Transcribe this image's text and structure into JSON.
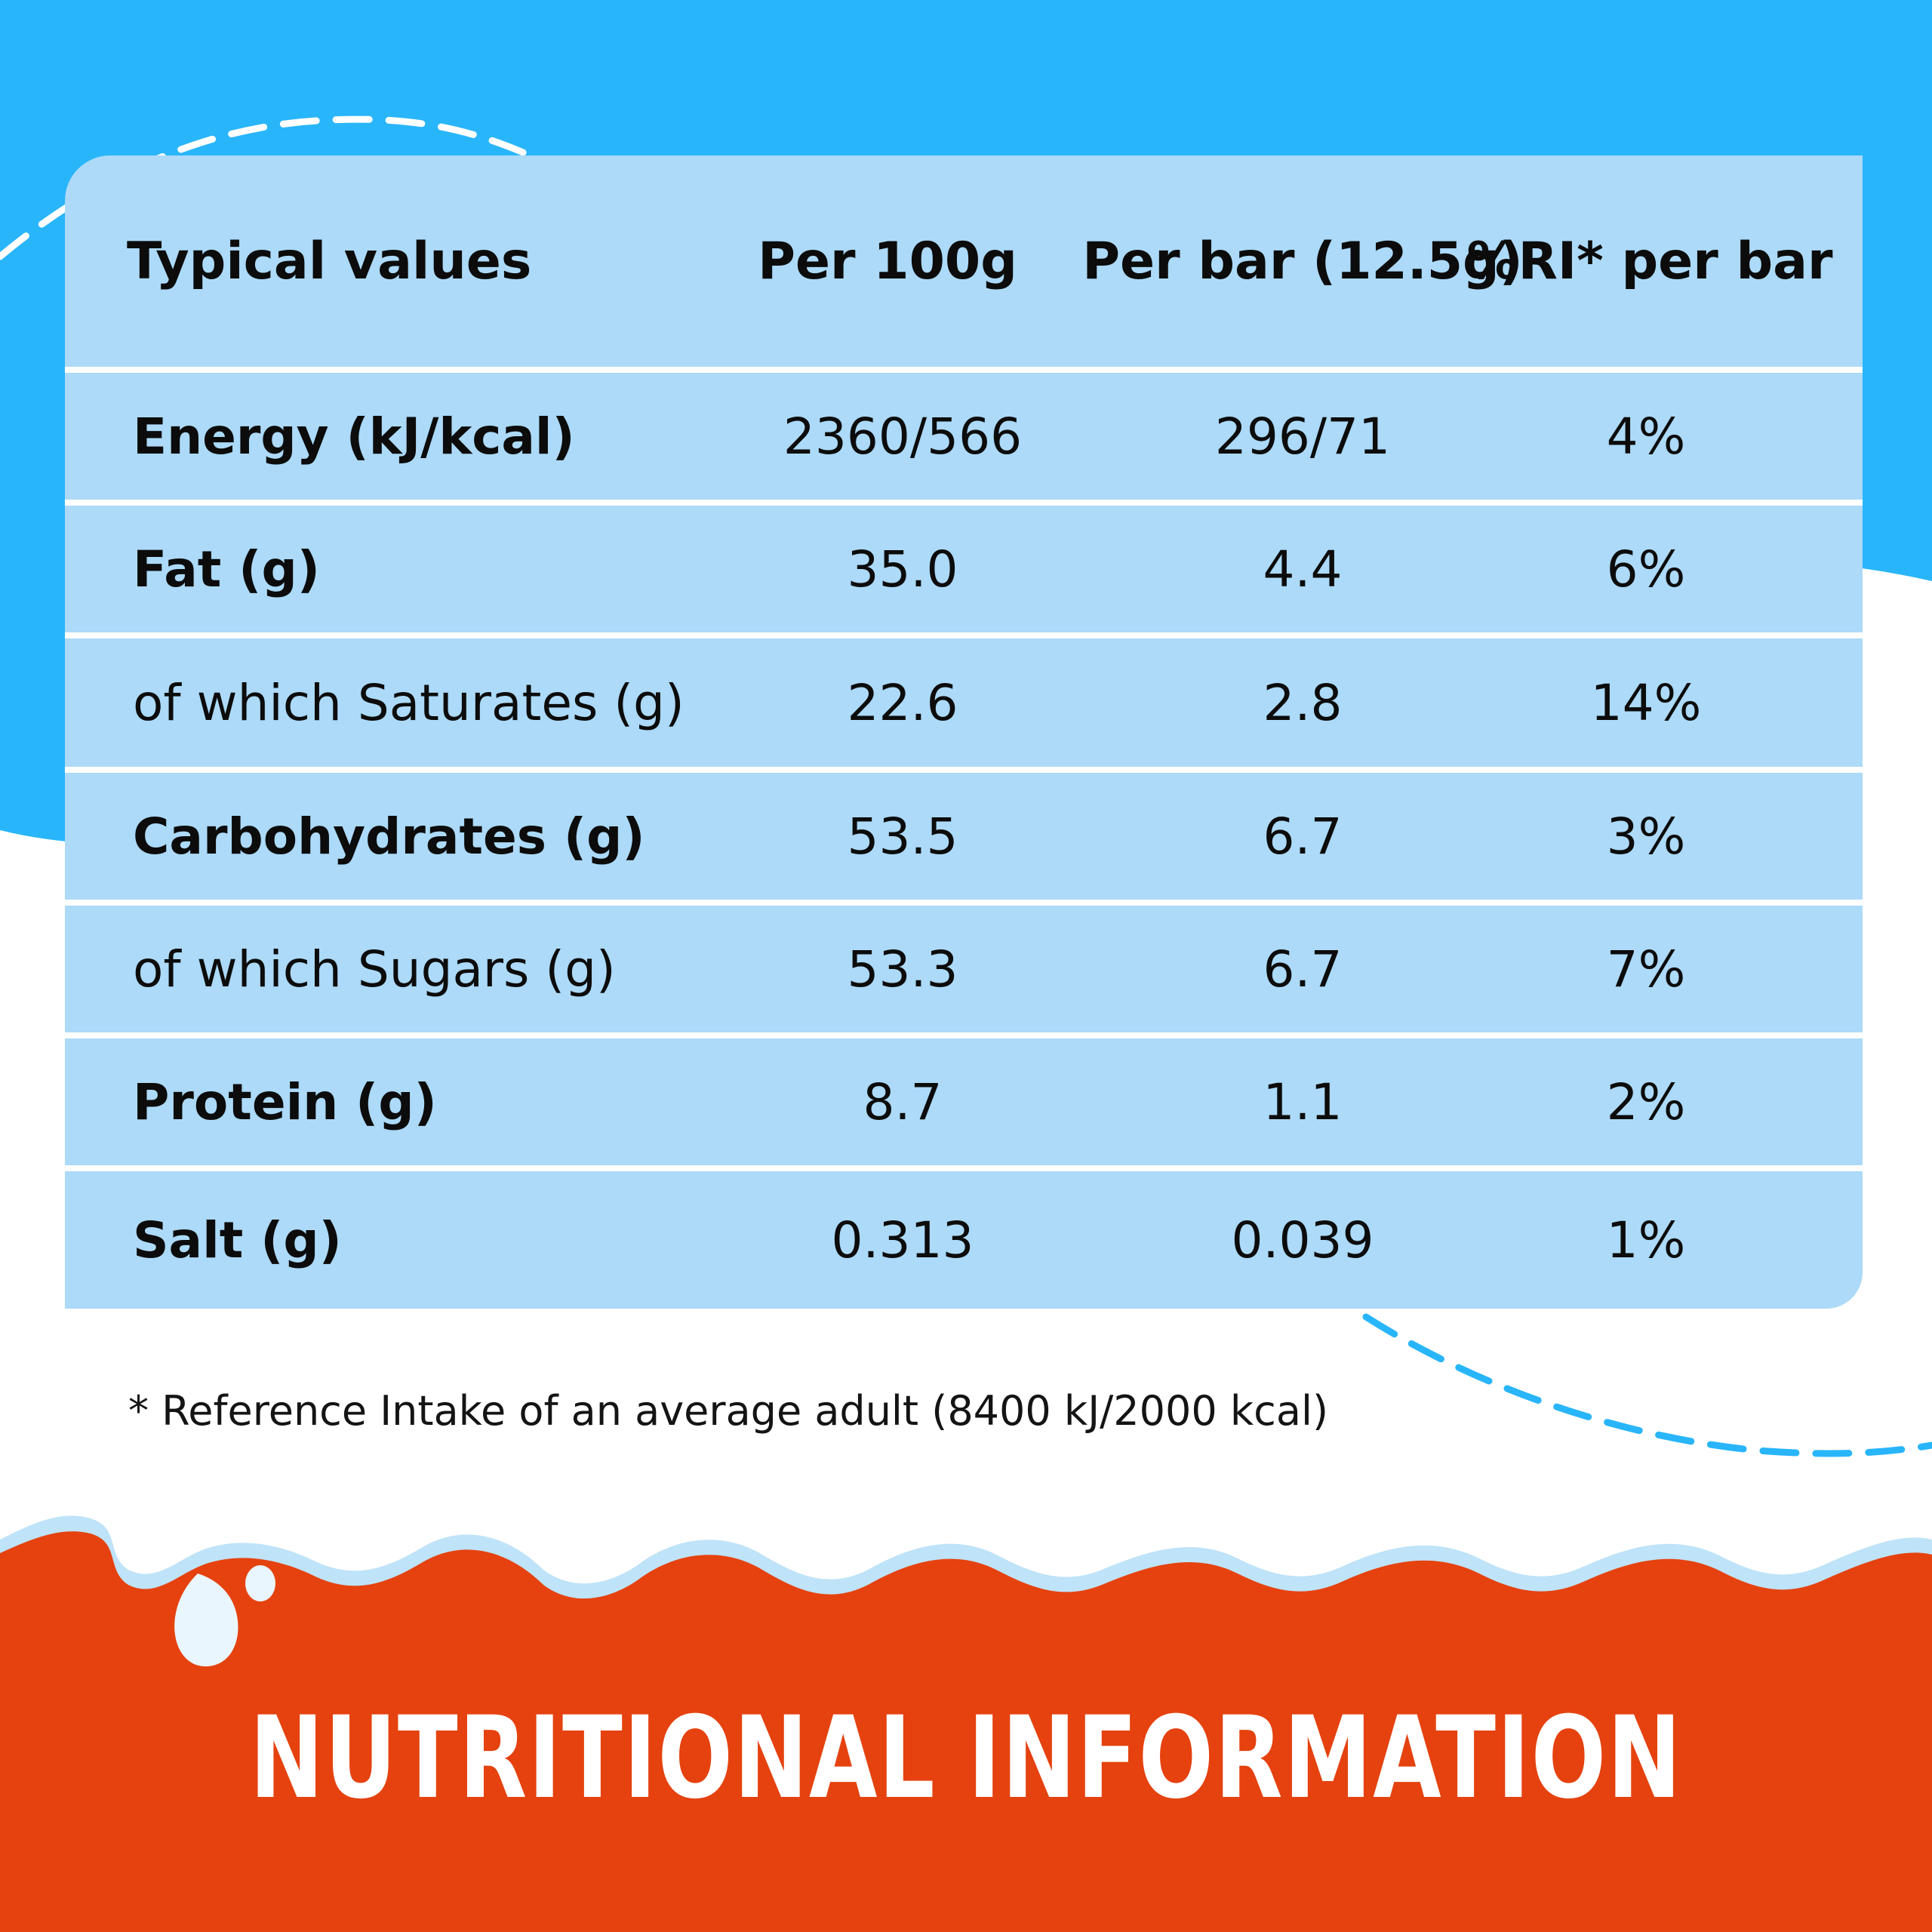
{
  "colors": {
    "sky": "#29b5fa",
    "card": "#acdaf8",
    "banner": "#e5420f",
    "text": "#0c0c0c",
    "dash": "#29b5fa"
  },
  "table": {
    "headers": [
      "Typical values",
      "Per 100g",
      "Per bar (12.5g)",
      "%RI* per bar"
    ],
    "rows": [
      {
        "label": "Energy (kJ/kcal)",
        "per100g": "2360/566",
        "perBar": "296/71",
        "ri": "4%",
        "bold": true
      },
      {
        "label": "Fat (g)",
        "per100g": "35.0",
        "perBar": "4.4",
        "ri": "6%",
        "bold": true
      },
      {
        "label": "of which Saturates (g)",
        "per100g": "22.6",
        "perBar": "2.8",
        "ri": "14%",
        "bold": false
      },
      {
        "label": "Carbohydrates (g)",
        "per100g": "53.5",
        "perBar": "6.7",
        "ri": "3%",
        "bold": true
      },
      {
        "label": "of which Sugars (g)",
        "per100g": "53.3",
        "perBar": "6.7",
        "ri": "7%",
        "bold": false
      },
      {
        "label": "Protein (g)",
        "per100g": "8.7",
        "perBar": "1.1",
        "ri": "2%",
        "bold": true
      },
      {
        "label": "Salt (g)",
        "per100g": "0.313",
        "perBar": "0.039",
        "ri": "1%",
        "bold": true
      }
    ]
  },
  "footnote": "* Reference Intake of an average adult (8400 kJ/2000 kcal)",
  "banner": {
    "title": "NUTRITIONAL INFORMATION"
  }
}
